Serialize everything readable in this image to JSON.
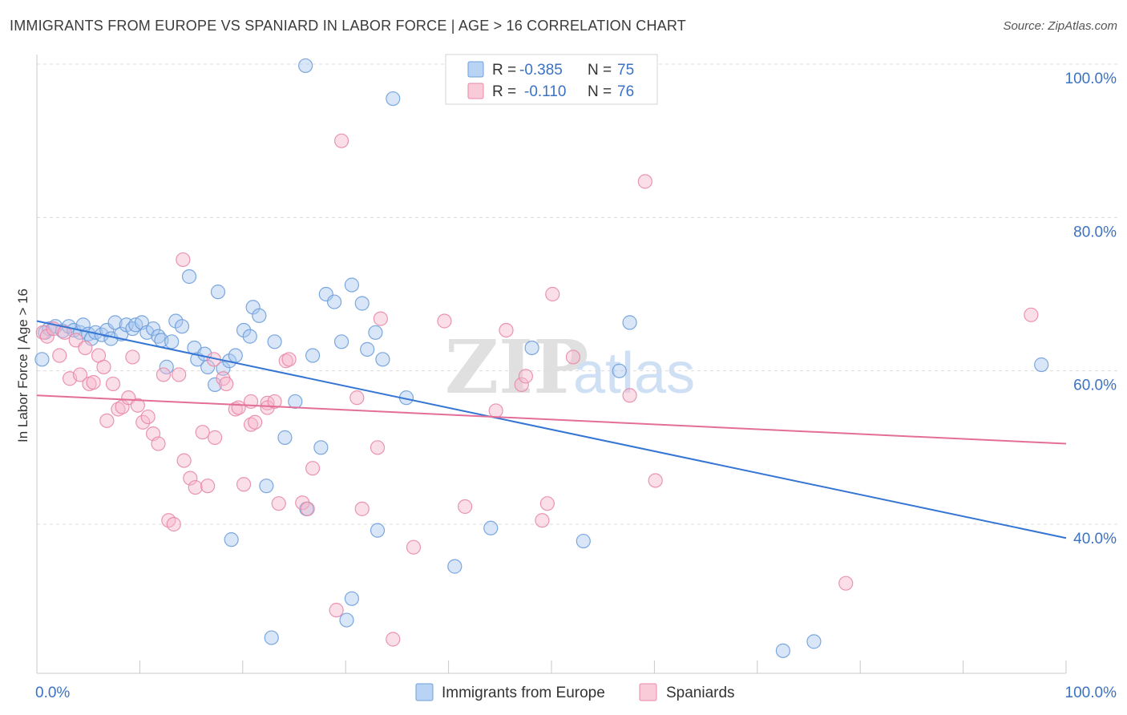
{
  "header": {
    "title": "IMMIGRANTS FROM EUROPE VS SPANIARD IN LABOR FORCE | AGE > 16 CORRELATION CHART",
    "source": "Source: ZipAtlas.com"
  },
  "watermark": {
    "zip": "ZIP",
    "atlas": "atlas"
  },
  "legend_stats": [
    {
      "r_label": "R =",
      "r_value": "-0.385",
      "n_label": "N =",
      "n_value": "75"
    },
    {
      "r_label": "R =",
      "r_value": "-0.110",
      "n_label": "N =",
      "n_value": "76"
    }
  ],
  "chart_data": {
    "type": "scatter",
    "ylabel": "In Labor Force | Age > 16",
    "xlabel": "",
    "x_range": [
      0,
      100
    ],
    "y_range": [
      20,
      103
    ],
    "x_tick_labels": [
      {
        "value": 0,
        "label": "0.0%"
      },
      {
        "value": 100,
        "label": "100.0%"
      }
    ],
    "x_minor_ticks": [
      10,
      20,
      30,
      40,
      50,
      60,
      70,
      80,
      90,
      100
    ],
    "y_tick_labels": [
      {
        "value": 100,
        "label": "100.0%"
      },
      {
        "value": 80,
        "label": "80.0%"
      },
      {
        "value": 60,
        "label": "60.0%"
      },
      {
        "value": 40,
        "label": "40.0%"
      }
    ],
    "grid": "horizontal-dashed",
    "legend_position": "bottom",
    "colors": {
      "blue_fill": "#a8c8f0",
      "blue_stroke": "#6e9fdb",
      "blue_line": "#3575d3",
      "pink_fill": "#f6b9cb",
      "pink_stroke": "#e88aa8",
      "pink_line": "#e36f98",
      "axis_label": "#3c72c4"
    },
    "series": [
      {
        "name": "Immigrants from Europe",
        "trend": {
          "x": [
            0,
            100
          ],
          "y": [
            66.5,
            38.2
          ]
        },
        "points": [
          [
            0.5,
            61.5
          ],
          [
            0.8,
            65.0
          ],
          [
            1.2,
            65.5
          ],
          [
            1.8,
            65.8
          ],
          [
            2.5,
            65.2
          ],
          [
            3.1,
            65.8
          ],
          [
            3.6,
            65.3
          ],
          [
            4.2,
            65.0
          ],
          [
            4.5,
            66.0
          ],
          [
            5.0,
            64.8
          ],
          [
            5.3,
            64.2
          ],
          [
            5.7,
            65.0
          ],
          [
            6.3,
            64.7
          ],
          [
            6.8,
            65.3
          ],
          [
            7.2,
            64.2
          ],
          [
            7.6,
            66.3
          ],
          [
            8.2,
            64.8
          ],
          [
            8.7,
            66.0
          ],
          [
            9.3,
            65.5
          ],
          [
            9.6,
            66.0
          ],
          [
            10.2,
            66.3
          ],
          [
            10.7,
            65.0
          ],
          [
            11.3,
            65.5
          ],
          [
            11.8,
            64.5
          ],
          [
            12.1,
            64.0
          ],
          [
            12.6,
            60.5
          ],
          [
            13.1,
            63.8
          ],
          [
            13.5,
            66.5
          ],
          [
            14.1,
            65.8
          ],
          [
            14.8,
            72.3
          ],
          [
            15.3,
            63.0
          ],
          [
            15.6,
            61.5
          ],
          [
            16.3,
            62.2
          ],
          [
            16.6,
            60.5
          ],
          [
            17.3,
            58.2
          ],
          [
            17.6,
            70.3
          ],
          [
            18.1,
            60.3
          ],
          [
            18.7,
            61.3
          ],
          [
            19.3,
            62.0
          ],
          [
            20.1,
            65.3
          ],
          [
            20.7,
            64.5
          ],
          [
            21.0,
            68.3
          ],
          [
            21.6,
            67.2
          ],
          [
            22.3,
            45.0
          ],
          [
            23.1,
            63.8
          ],
          [
            24.1,
            51.3
          ],
          [
            25.1,
            56.0
          ],
          [
            26.1,
            99.8
          ],
          [
            26.8,
            62.0
          ],
          [
            27.6,
            50.0
          ],
          [
            28.1,
            70.0
          ],
          [
            28.9,
            69.0
          ],
          [
            29.6,
            63.8
          ],
          [
            30.6,
            71.2
          ],
          [
            31.6,
            68.8
          ],
          [
            32.1,
            62.8
          ],
          [
            32.9,
            65.0
          ],
          [
            33.6,
            61.5
          ],
          [
            34.6,
            95.5
          ],
          [
            35.9,
            56.5
          ],
          [
            22.8,
            25.2
          ],
          [
            18.9,
            38.0
          ],
          [
            26.2,
            42.0
          ],
          [
            30.1,
            27.5
          ],
          [
            33.1,
            39.2
          ],
          [
            30.6,
            30.3
          ],
          [
            40.6,
            34.5
          ],
          [
            44.1,
            39.5
          ],
          [
            48.1,
            63.0
          ],
          [
            53.1,
            37.8
          ],
          [
            56.6,
            60.0
          ],
          [
            57.6,
            66.3
          ],
          [
            72.5,
            23.5
          ],
          [
            75.5,
            24.7
          ],
          [
            97.6,
            60.8
          ]
        ]
      },
      {
        "name": "Spaniards",
        "trend": {
          "x": [
            0,
            100
          ],
          "y": [
            56.8,
            50.5
          ]
        },
        "points": [
          [
            0.6,
            65.0
          ],
          [
            1.0,
            64.5
          ],
          [
            1.6,
            65.5
          ],
          [
            2.2,
            62.0
          ],
          [
            2.7,
            65.0
          ],
          [
            3.2,
            59.0
          ],
          [
            3.8,
            64.0
          ],
          [
            4.2,
            59.5
          ],
          [
            4.7,
            63.0
          ],
          [
            5.1,
            58.3
          ],
          [
            5.5,
            58.5
          ],
          [
            6.0,
            62.0
          ],
          [
            6.5,
            60.5
          ],
          [
            6.8,
            53.5
          ],
          [
            7.4,
            58.3
          ],
          [
            7.9,
            55.0
          ],
          [
            8.3,
            55.3
          ],
          [
            8.9,
            56.5
          ],
          [
            9.3,
            61.8
          ],
          [
            9.8,
            55.5
          ],
          [
            10.3,
            53.3
          ],
          [
            10.8,
            54.0
          ],
          [
            11.3,
            51.8
          ],
          [
            11.8,
            50.5
          ],
          [
            12.3,
            59.5
          ],
          [
            12.8,
            40.5
          ],
          [
            13.3,
            40.0
          ],
          [
            13.8,
            59.5
          ],
          [
            14.2,
            74.5
          ],
          [
            14.3,
            48.3
          ],
          [
            14.9,
            46.0
          ],
          [
            15.4,
            44.8
          ],
          [
            16.1,
            52.0
          ],
          [
            16.6,
            45.0
          ],
          [
            17.2,
            61.5
          ],
          [
            17.3,
            51.3
          ],
          [
            18.1,
            59.0
          ],
          [
            18.4,
            58.3
          ],
          [
            19.3,
            55.0
          ],
          [
            19.6,
            55.2
          ],
          [
            20.1,
            45.2
          ],
          [
            20.8,
            56.0
          ],
          [
            20.8,
            53.0
          ],
          [
            21.2,
            53.3
          ],
          [
            22.4,
            55.8
          ],
          [
            22.4,
            55.2
          ],
          [
            23.1,
            56.0
          ],
          [
            23.5,
            42.7
          ],
          [
            24.2,
            61.3
          ],
          [
            24.5,
            61.5
          ],
          [
            25.8,
            42.8
          ],
          [
            26.3,
            42.0
          ],
          [
            26.8,
            47.3
          ],
          [
            29.1,
            28.8
          ],
          [
            29.6,
            90.0
          ],
          [
            31.1,
            56.5
          ],
          [
            31.6,
            42.0
          ],
          [
            33.1,
            50.0
          ],
          [
            33.4,
            66.8
          ],
          [
            34.6,
            25.0
          ],
          [
            36.6,
            37.0
          ],
          [
            39.6,
            66.5
          ],
          [
            41.6,
            42.3
          ],
          [
            44.6,
            54.8
          ],
          [
            45.6,
            65.3
          ],
          [
            47.1,
            58.2
          ],
          [
            47.5,
            59.3
          ],
          [
            49.1,
            40.5
          ],
          [
            49.6,
            42.7
          ],
          [
            50.1,
            70.0
          ],
          [
            52.1,
            61.8
          ],
          [
            57.6,
            56.8
          ],
          [
            59.1,
            84.7
          ],
          [
            60.1,
            45.7
          ],
          [
            78.6,
            32.3
          ],
          [
            96.6,
            67.3
          ]
        ]
      }
    ]
  }
}
